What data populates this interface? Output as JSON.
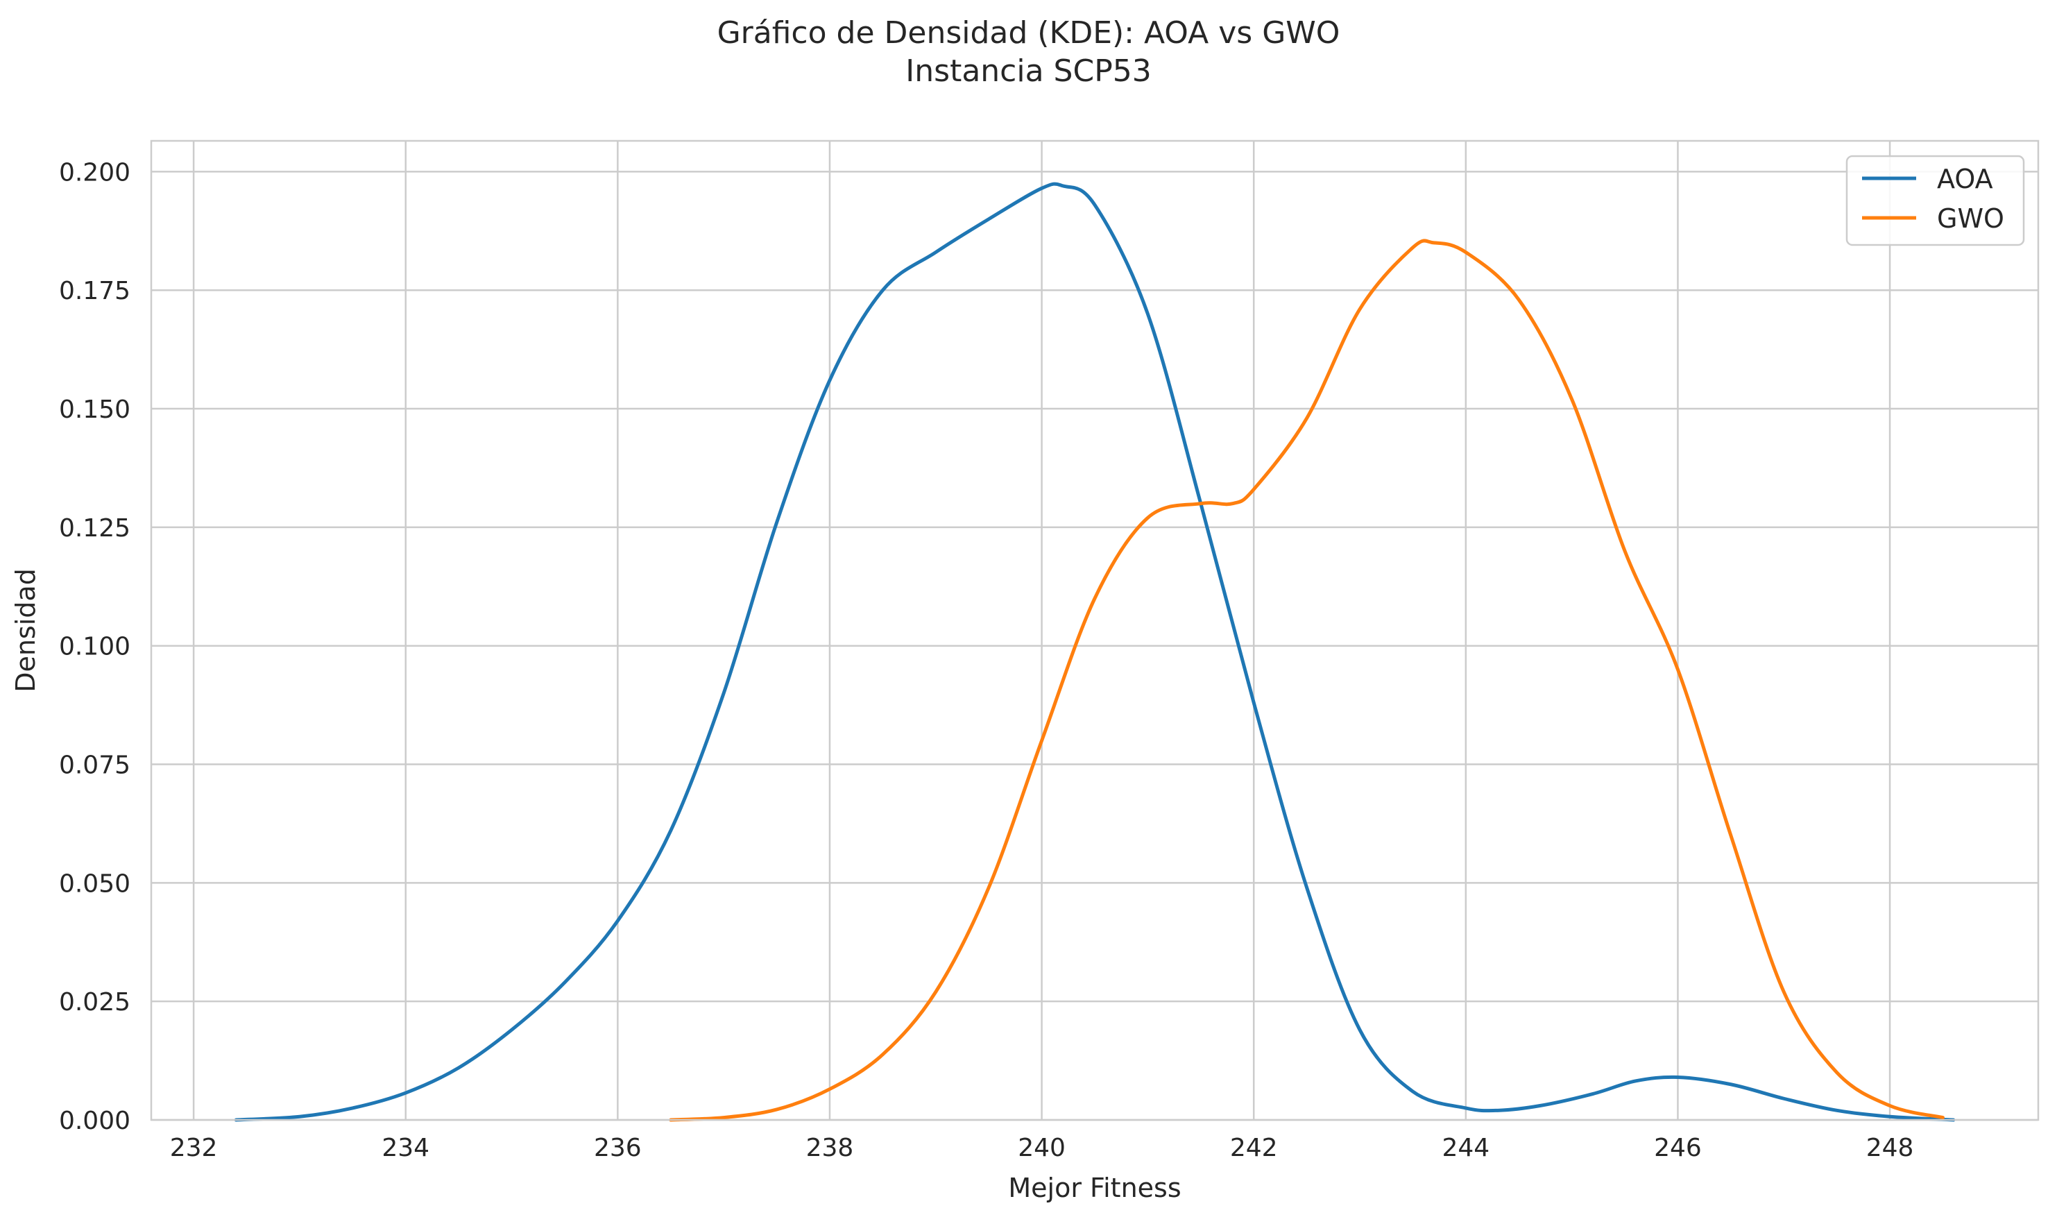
{
  "chart_data": {
    "type": "line",
    "title": "Gráfico de Densidad (KDE): AOA vs GWO",
    "subtitle": "Instancia SCP53",
    "xlabel": "Mejor Fitness",
    "ylabel": "Densidad",
    "xlim": [
      231.6,
      249.4
    ],
    "ylim": [
      0.0,
      0.2065
    ],
    "xticks": [
      232,
      234,
      236,
      238,
      240,
      242,
      244,
      246,
      248
    ],
    "yticks": [
      0.0,
      0.025,
      0.05,
      0.075,
      0.1,
      0.125,
      0.15,
      0.175,
      0.2
    ],
    "ytick_labels": [
      "0.000",
      "0.025",
      "0.050",
      "0.075",
      "0.100",
      "0.125",
      "0.150",
      "0.175",
      "0.200"
    ],
    "grid": true,
    "legend_position": "top-right",
    "series": [
      {
        "name": "AOA",
        "color": "#1f77b4",
        "x": [
          232.4,
          233.0,
          233.5,
          234.0,
          234.5,
          235.0,
          235.5,
          236.0,
          236.5,
          237.0,
          237.5,
          238.0,
          238.5,
          239.0,
          239.5,
          240.0,
          240.2,
          240.5,
          241.0,
          241.5,
          242.0,
          242.5,
          243.0,
          243.5,
          244.0,
          244.3,
          244.7,
          245.2,
          245.6,
          246.0,
          246.5,
          247.0,
          247.5,
          248.0,
          248.6
        ],
        "y": [
          0.0,
          0.0007,
          0.0025,
          0.0057,
          0.011,
          0.019,
          0.029,
          0.042,
          0.061,
          0.09,
          0.126,
          0.156,
          0.175,
          0.183,
          0.19,
          0.1965,
          0.197,
          0.193,
          0.17,
          0.13,
          0.088,
          0.049,
          0.019,
          0.006,
          0.0025,
          0.002,
          0.003,
          0.0055,
          0.0082,
          0.009,
          0.0075,
          0.0045,
          0.002,
          0.0007,
          0.0
        ]
      },
      {
        "name": "GWO",
        "color": "#ff7f0e",
        "x": [
          236.5,
          237.0,
          237.5,
          238.0,
          238.5,
          239.0,
          239.5,
          240.0,
          240.5,
          241.0,
          241.5,
          241.8,
          242.0,
          242.5,
          243.0,
          243.5,
          243.7,
          244.0,
          244.5,
          245.0,
          245.5,
          246.0,
          246.5,
          247.0,
          247.5,
          248.0,
          248.5
        ],
        "y": [
          0.0,
          0.0005,
          0.0022,
          0.0065,
          0.0138,
          0.027,
          0.049,
          0.08,
          0.11,
          0.127,
          0.13,
          0.13,
          0.133,
          0.148,
          0.171,
          0.184,
          0.185,
          0.183,
          0.173,
          0.152,
          0.12,
          0.095,
          0.06,
          0.027,
          0.01,
          0.003,
          0.0005
        ]
      }
    ]
  }
}
